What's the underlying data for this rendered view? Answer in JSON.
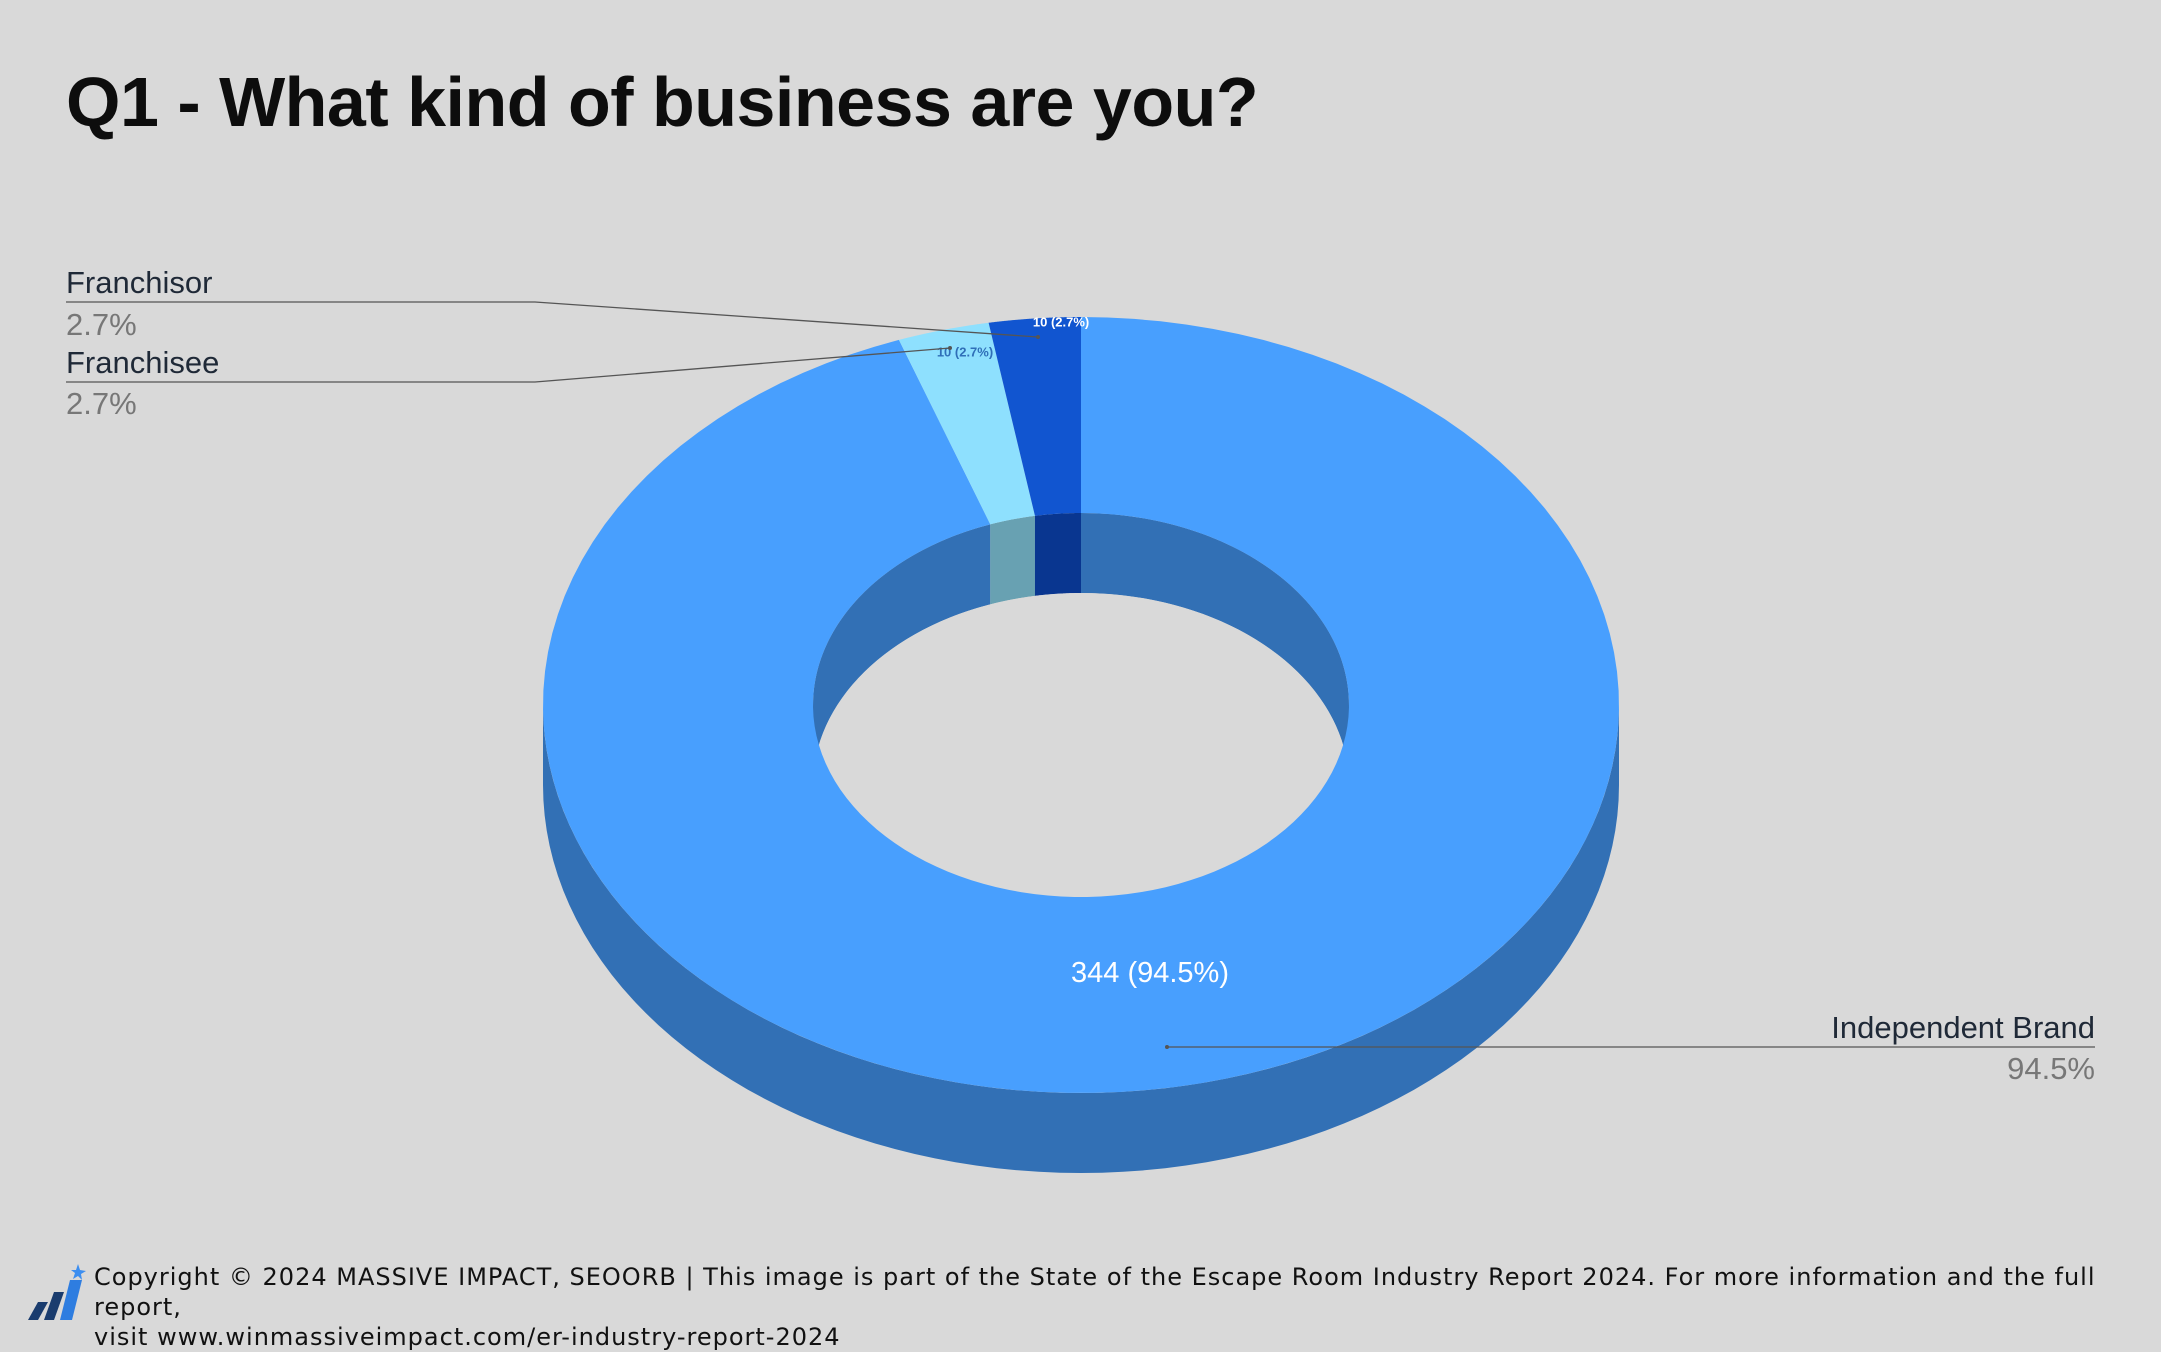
{
  "title": "Q1 - What kind of business are you?",
  "chart_data": {
    "type": "pie",
    "donut": true,
    "three_d": true,
    "title": "Q1 - What kind of business are you?",
    "slices": [
      {
        "name": "Independent Brand",
        "value": 344,
        "percent": 94.5,
        "label": "344 (94.5%)",
        "legend_pct": "94.5%",
        "color": "#489ffe",
        "side_color": "#3270b5"
      },
      {
        "name": "Franchisee",
        "value": 10,
        "percent": 2.7,
        "label": "10 (2.7%)",
        "legend_pct": "2.7%",
        "color": "#8ee0fe",
        "side_color": "#68a1b2"
      },
      {
        "name": "Franchisor",
        "value": 10,
        "percent": 2.7,
        "label": "10 (2.7%)",
        "legend_pct": "2.7%",
        "color": "#1155d0",
        "side_color": "#093690"
      }
    ],
    "legend": "callouts"
  },
  "footer": {
    "line1": "Copyright © 2024 MASSIVE IMPACT, SEOORB | This image is part of the State of the Escape Room Industry Report 2024. For more information and the full report,",
    "line2": "visit www.winmassiveimpact.com/er-industry-report-2024"
  },
  "colors": {
    "background": "#d9d9d9",
    "callout_line": "#555555",
    "label_dark": "#1f2937",
    "label_gray": "#777777"
  }
}
